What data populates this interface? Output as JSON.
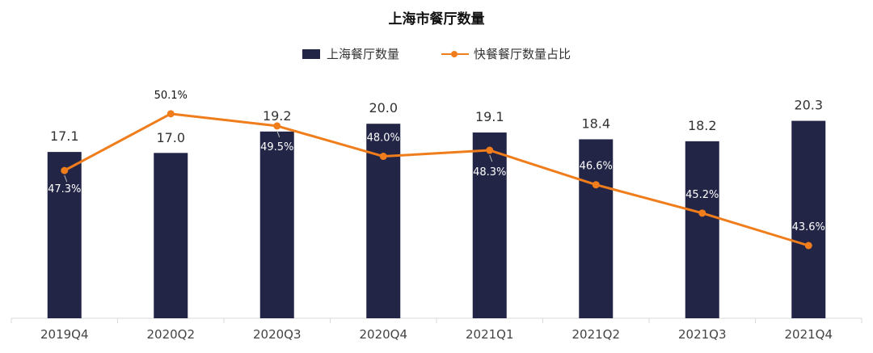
{
  "chart_data": {
    "type": "bar+line",
    "title": "上海市餐厅数量",
    "categories": [
      "2019Q4",
      "2020Q2",
      "2020Q3",
      "2020Q4",
      "2021Q1",
      "2021Q2",
      "2021Q3",
      "2021Q4"
    ],
    "series": [
      {
        "name": "上海餐厅数量",
        "type": "bar",
        "color": "#222546",
        "values": [
          17.1,
          17.0,
          19.2,
          20.0,
          19.1,
          18.4,
          18.2,
          20.3
        ],
        "labels": [
          "17.1",
          "17.0",
          "19.2",
          "20.0",
          "19.1",
          "18.4",
          "18.2",
          "20.3"
        ]
      },
      {
        "name": "快餐餐厅数量占比",
        "type": "line",
        "color": "#f07d1c",
        "values": [
          47.3,
          50.1,
          49.5,
          48.0,
          48.3,
          46.6,
          45.2,
          43.6
        ],
        "labels": [
          "47.3%",
          "50.1%",
          "49.5%",
          "48.0%",
          "48.3%",
          "46.6%",
          "45.2%",
          "43.6%"
        ]
      }
    ],
    "legend": "top-center",
    "grid": false
  }
}
